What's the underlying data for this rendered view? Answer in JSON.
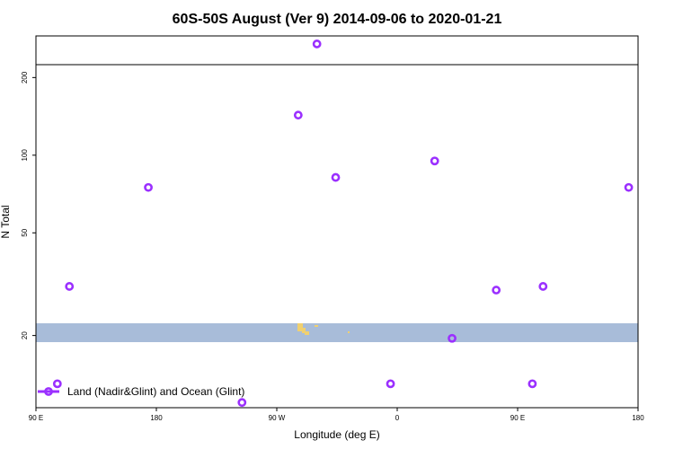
{
  "chart_data": {
    "type": "scatter",
    "title": "60S-50S August (Ver 9)   2014-09-06 to 2020-01-21",
    "xlabel": "Longitude (deg E)",
    "ylabel": "N Total",
    "y_scale": "log",
    "x_ticks": [
      "90 E",
      "180",
      "90 W",
      "0",
      "90 E",
      "180"
    ],
    "y_ticks": [
      "20",
      "50",
      "100",
      "200"
    ],
    "y_ticks_values": [
      20,
      50,
      100,
      200
    ],
    "xlim": [
      90,
      540
    ],
    "ylim": [
      10.5,
      290
    ],
    "grid": false,
    "legend_position": "bottom-left",
    "colors": {
      "series": "#9b30ff",
      "band": "#a8bcd9",
      "land": "#f0d070"
    },
    "series": [
      {
        "name": "Land (Nadir&Glint) and Ocean (Glint)",
        "x": [
          106,
          115,
          174,
          244,
          286,
          300,
          314,
          355,
          388,
          401,
          434,
          461,
          469,
          533
        ],
        "y": [
          13,
          31,
          75,
          11,
          143,
          270,
          82,
          13,
          95,
          19.5,
          30,
          13,
          31,
          75
        ]
      }
    ]
  }
}
